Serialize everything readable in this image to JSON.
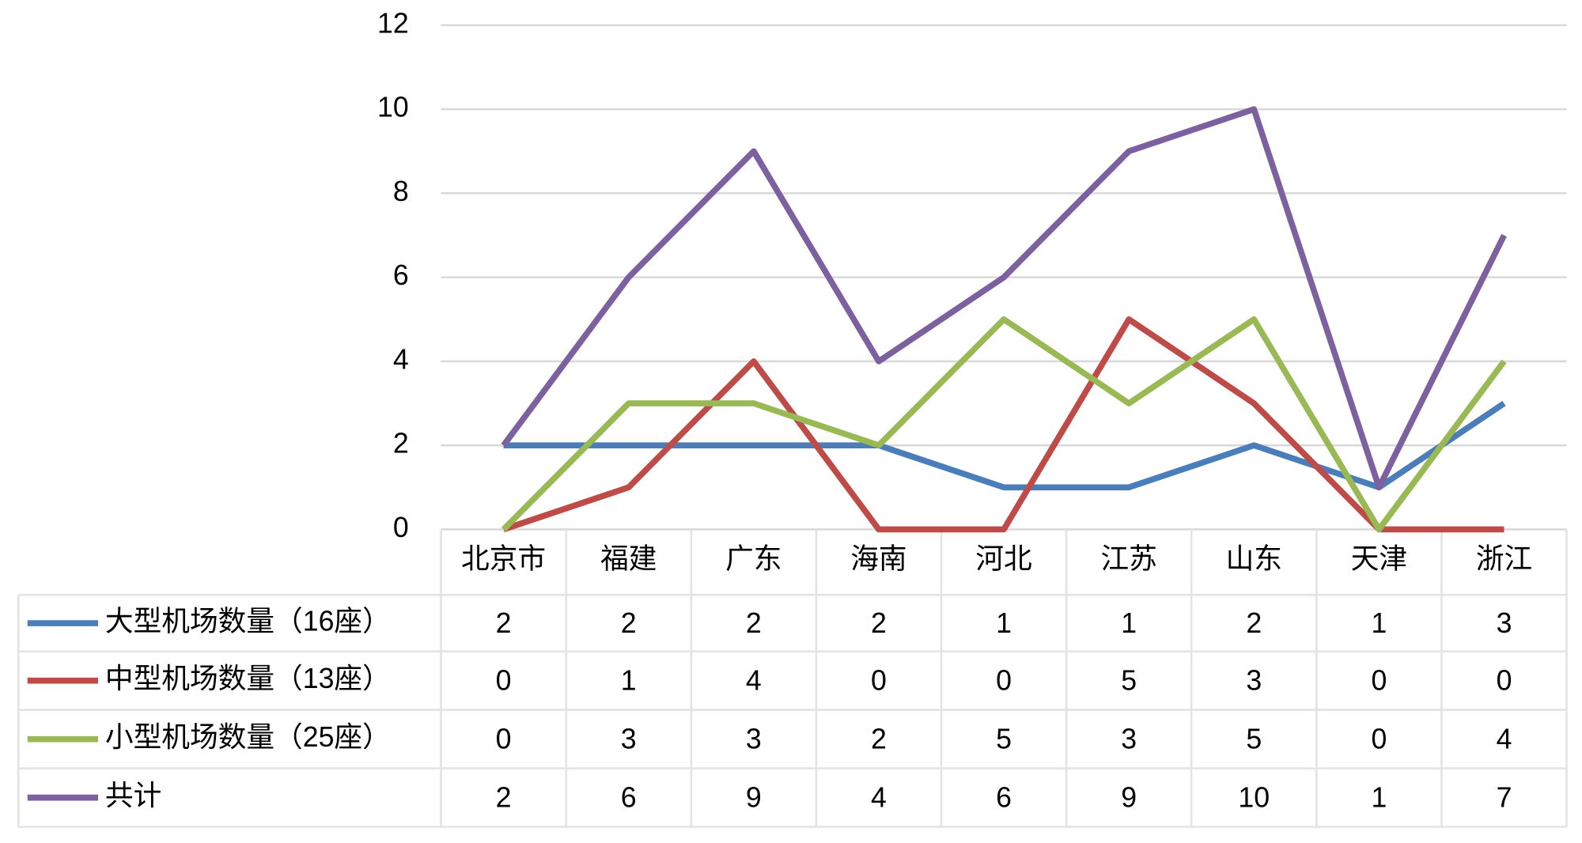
{
  "chart_data": {
    "type": "line",
    "categories": [
      "北京市",
      "福建",
      "广东",
      "海南",
      "河北",
      "江苏",
      "山东",
      "天津",
      "浙江"
    ],
    "series": [
      {
        "name": "大型机场数量（16座）",
        "color": "#4a7ebb",
        "values": [
          2,
          2,
          2,
          2,
          1,
          1,
          2,
          1,
          3
        ]
      },
      {
        "name": "中型机场数量（13座）",
        "color": "#be4b48",
        "values": [
          0,
          1,
          4,
          0,
          0,
          5,
          3,
          0,
          0
        ]
      },
      {
        "name": "小型机场数量（25座）",
        "color": "#98b954",
        "values": [
          0,
          3,
          3,
          2,
          5,
          3,
          5,
          0,
          4
        ]
      },
      {
        "name": "共计",
        "color": "#7d60a0",
        "values": [
          2,
          6,
          9,
          4,
          6,
          9,
          10,
          1,
          7
        ]
      }
    ],
    "ylim": [
      0,
      12
    ],
    "yticks": [
      0,
      2,
      4,
      6,
      8,
      10,
      12
    ],
    "grid": true,
    "data_table": true
  }
}
